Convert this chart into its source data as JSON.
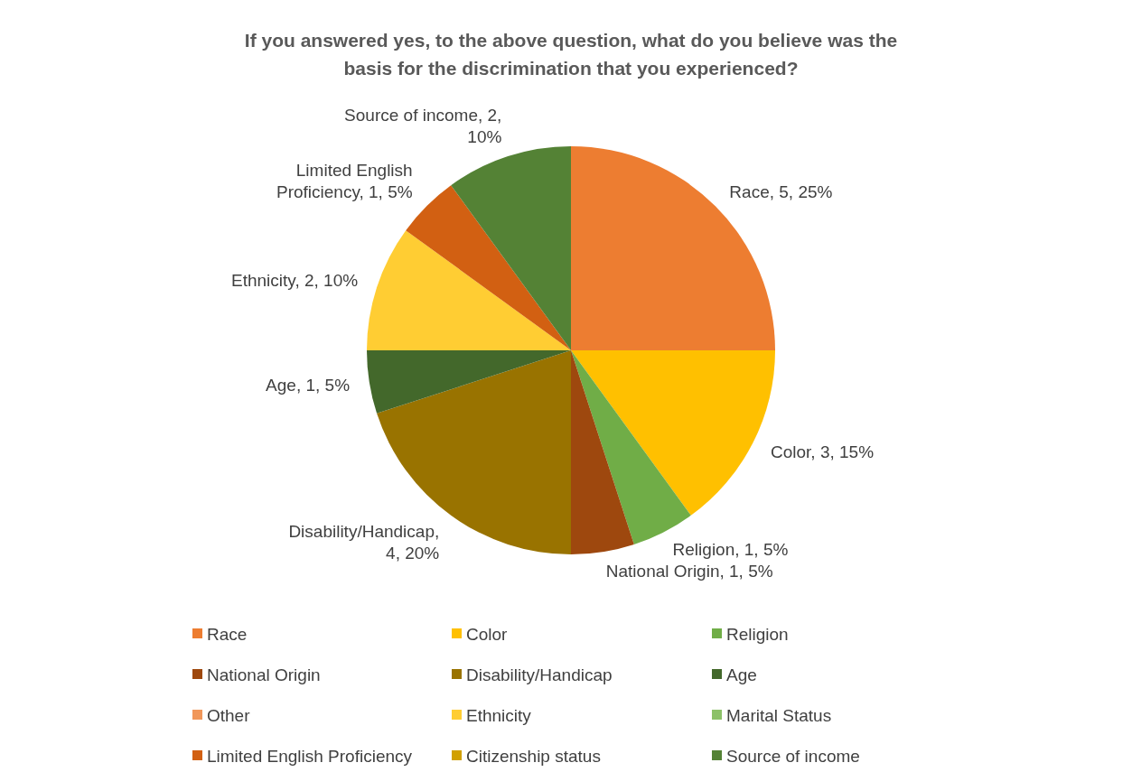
{
  "chart_data": {
    "type": "pie",
    "title": "If you answered yes, to the above question, what do you believe was the basis for the discrimination that you experienced?",
    "categories": [
      "Race",
      "Color",
      "Religion",
      "National Origin",
      "Disability/Handicap",
      "Age",
      "Other",
      "Ethnicity",
      "Marital Status",
      "Limited English Proficiency",
      "Citizenship status",
      "Source of income"
    ],
    "values": [
      5,
      3,
      1,
      1,
      4,
      1,
      0,
      2,
      0,
      1,
      0,
      2
    ],
    "value_labels": [
      "Race, 5, 25%",
      "Color, 3, 15%",
      "Religion, 1, 5%",
      "National Origin, 1, 5%",
      "Disability/Handicap, 4, 20%",
      "Age, 1, 5%",
      null,
      "Ethnicity, 2, 10%",
      null,
      "Limited English Proficiency, 1, 5%",
      null,
      "Source of income, 2, 10%"
    ],
    "colors": [
      "#ed7d31",
      "#ffc000",
      "#70ad47",
      "#9e480e",
      "#997300",
      "#43682b",
      "#f1975a",
      "#ffcd33",
      "#8cc168",
      "#d26012",
      "#d1a000",
      "#548235"
    ],
    "legend": "bottom"
  }
}
